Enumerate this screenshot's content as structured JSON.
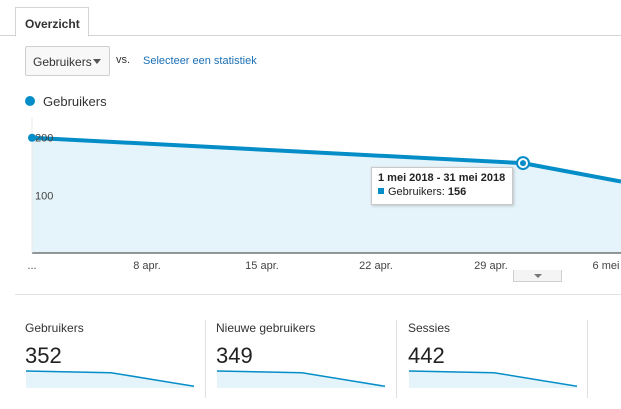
{
  "tabs": [
    {
      "label": "Overzicht"
    }
  ],
  "controls": {
    "metric_select": "Gebruikers",
    "vs_label": "vs.",
    "compare_link": "Selecteer een statistiek"
  },
  "chart_data": {
    "type": "area",
    "title": "",
    "xlabel": "",
    "ylabel": "",
    "series": [
      {
        "name": "Gebruikers",
        "color": "#058dc7"
      }
    ],
    "values": [
      200,
      156,
      124
    ],
    "ylim": [
      0,
      236
    ],
    "y_ticks": [
      {
        "value": 200,
        "label": "200"
      },
      {
        "value": 100,
        "label": "100"
      }
    ],
    "x_tick_labels": [
      "...",
      "8 apr.",
      "15 apr.",
      "22 apr.",
      "29 apr.",
      "6 mei"
    ],
    "grid": false,
    "legend": "top-left"
  },
  "tooltip": {
    "range": "1 mei 2018 - 31 mei 2018",
    "label": "Gebruikers: ",
    "value": "156"
  },
  "colors": {
    "line": "#058dc7",
    "fill": "#e5f3fa"
  },
  "cards": [
    {
      "label": "Gebruikers",
      "value": "352",
      "spark": [
        10,
        9,
        1
      ]
    },
    {
      "label": "Nieuwe gebruikers",
      "value": "349",
      "spark": [
        10,
        9,
        1
      ]
    },
    {
      "label": "Sessies",
      "value": "442",
      "spark": [
        10,
        9,
        1
      ]
    }
  ],
  "icons": {
    "dropdown": "chevron-down-icon",
    "collapse": "chevron-down-icon"
  }
}
